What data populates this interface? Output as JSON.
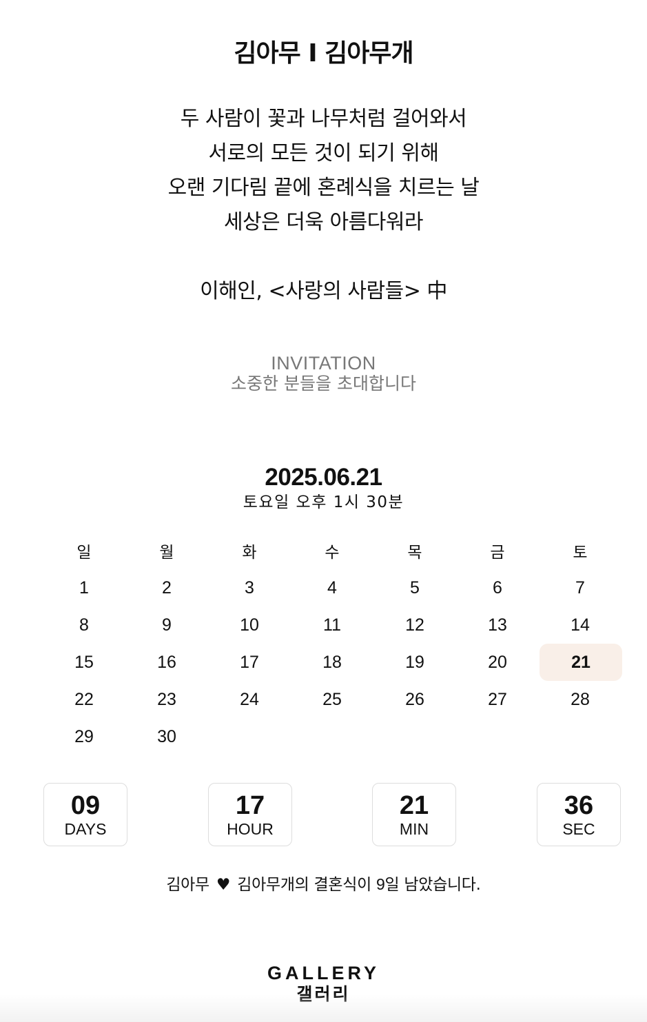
{
  "header": {
    "title": "김아무 I 김아무개"
  },
  "poem": {
    "lines": [
      "두 사람이 꽃과 나무처럼 걸어와서",
      "서로의 모든 것이 되기 위해",
      "오랜 기다림 끝에 혼례식을 치르는 날",
      "세상은 더욱 아름다워라"
    ],
    "source": "이해인, <사랑의 사람들> 中"
  },
  "invitation": {
    "title_en": "INVITATION",
    "subtitle_ko": "소중한 분들을 초대합니다"
  },
  "wedding": {
    "date": "2025.06.21",
    "time": "토요일 오후 1시 30분"
  },
  "calendar": {
    "weekdays": [
      "일",
      "월",
      "화",
      "수",
      "목",
      "금",
      "토"
    ],
    "weeks": [
      [
        "1",
        "2",
        "3",
        "4",
        "5",
        "6",
        "7"
      ],
      [
        "8",
        "9",
        "10",
        "11",
        "12",
        "13",
        "14"
      ],
      [
        "15",
        "16",
        "17",
        "18",
        "19",
        "20",
        "21"
      ],
      [
        "22",
        "23",
        "24",
        "25",
        "26",
        "27",
        "28"
      ],
      [
        "29",
        "30",
        "",
        "",
        "",
        "",
        ""
      ]
    ],
    "selected_day": "21",
    "highlight_color": "#f9efe8"
  },
  "countdown": {
    "days": {
      "value": "09",
      "unit": "DAYS"
    },
    "hour": {
      "value": "17",
      "unit": "HOUR"
    },
    "min": {
      "value": "21",
      "unit": "MIN"
    },
    "sec": {
      "value": "36",
      "unit": "SEC"
    }
  },
  "dday": {
    "groom": "김아무",
    "heart": "♥",
    "bride_text": "김아무개의 결혼식이 ",
    "days": "9",
    "suffix": "일 남았습니다."
  },
  "gallery": {
    "title_en": "GALLERY",
    "title_ko": "갤러리"
  }
}
